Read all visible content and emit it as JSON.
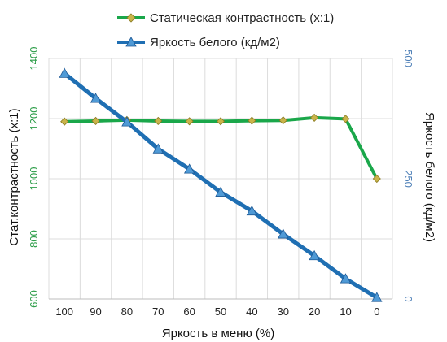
{
  "chart_data": {
    "type": "line",
    "title": "",
    "xlabel": "Яркость в меню (%)",
    "ylabel_left": "Стат.контрастность  (x:1)",
    "ylabel_right": "Яркость белого (кд/м2)",
    "categories": [
      "100",
      "90",
      "80",
      "70",
      "60",
      "50",
      "40",
      "30",
      "20",
      "10",
      "0"
    ],
    "y_left_range": [
      600,
      1400
    ],
    "y_left_ticks": [
      "600",
      "800",
      "1000",
      "1200",
      "1400"
    ],
    "y_right_range": [
      0,
      500
    ],
    "y_right_ticks": [
      "0",
      "250",
      "500"
    ],
    "grid": true,
    "legend_position": "top",
    "series": [
      {
        "name": "Статическая контрастность  (x:1)",
        "axis": "left",
        "color": "#1aa74a",
        "marker_color": "#c9b44a",
        "marker": "diamond",
        "values": [
          1190,
          1192,
          1195,
          1192,
          1191,
          1191,
          1193,
          1194,
          1203,
          1199,
          1000
        ]
      },
      {
        "name": "Яркость белого (кд/м2)",
        "axis": "right",
        "color": "#1f6fb3",
        "marker_color": "#4f9ad6",
        "marker": "triangle",
        "values": [
          469,
          417,
          368,
          312,
          270,
          222,
          183,
          135,
          90,
          42,
          3
        ]
      }
    ]
  }
}
